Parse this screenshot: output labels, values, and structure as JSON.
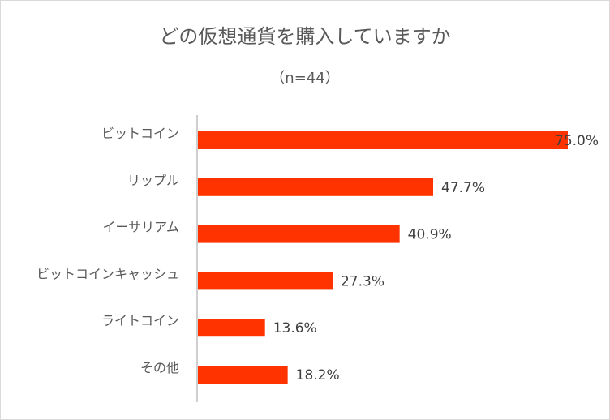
{
  "chart_data": {
    "type": "bar",
    "orientation": "horizontal",
    "title": "どの仮想通貨を購入していますか",
    "subtitle": "（n=44）",
    "categories": [
      "ビットコイン",
      "リップル",
      "イーサリアム",
      "ビットコインキャッシュ",
      "ライトコイン",
      "その他"
    ],
    "values": [
      75.0,
      47.7,
      40.9,
      27.3,
      13.6,
      18.2
    ],
    "value_labels": [
      "75.0%",
      "47.7%",
      "40.9%",
      "27.3%",
      "13.6%",
      "18.2%"
    ],
    "xlim": [
      0,
      80
    ],
    "grid": false,
    "legend": "none",
    "bar_color": "#FF3300",
    "axis_color": "#bfbfbf"
  }
}
